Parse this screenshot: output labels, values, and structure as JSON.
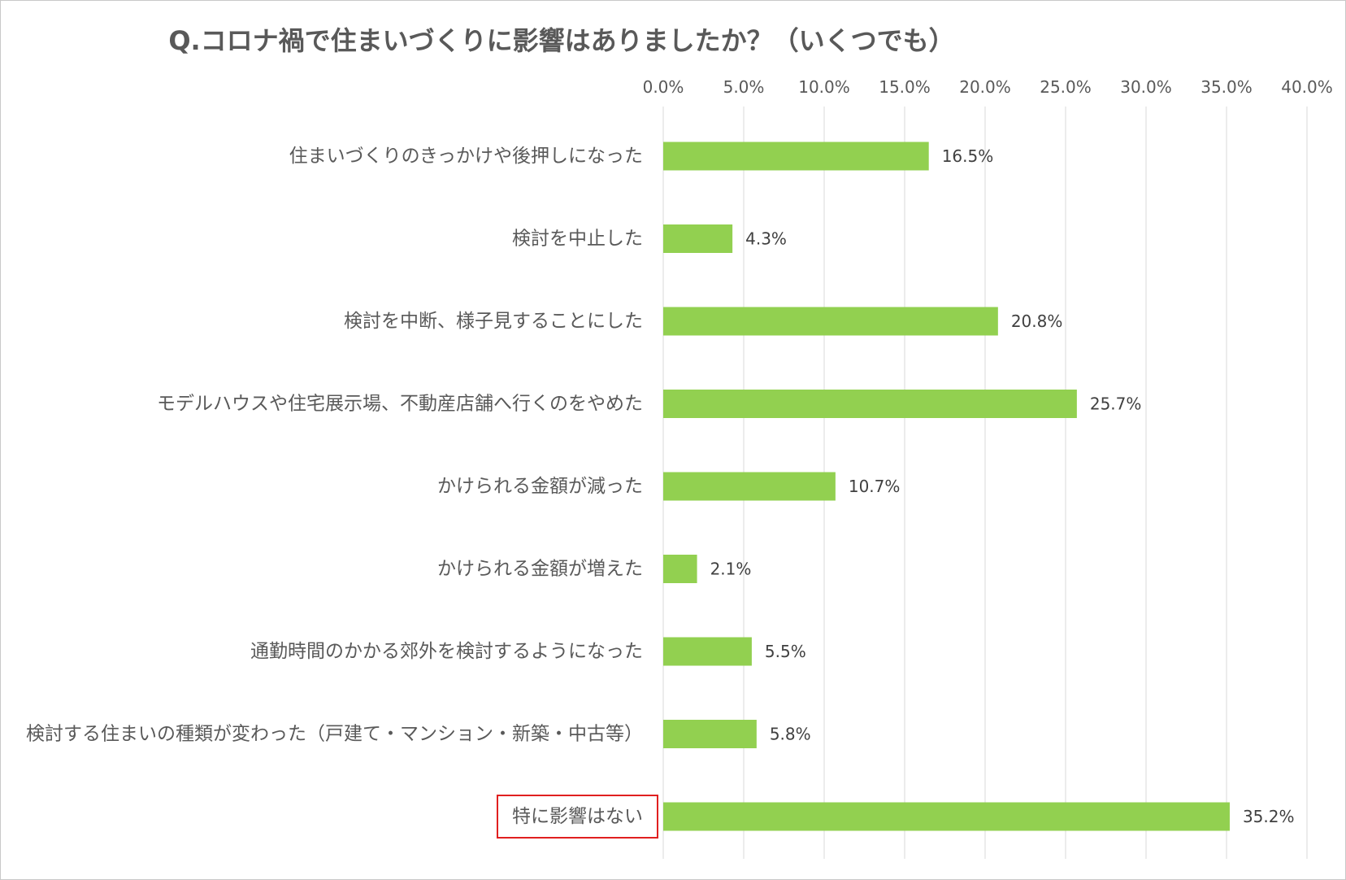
{
  "chart_data": {
    "type": "bar",
    "orientation": "horizontal",
    "title": "Q.コロナ禍で住まいづくりに影響はありましたか？（いくつでも）",
    "categories": [
      "住まいづくりのきっかけや後押しになった",
      "検討を中止した",
      "検討を中断、様子見することにした",
      "モデルハウスや住宅展示場、不動産店舗へ行くのをやめた",
      "かけられる金額が減った",
      "かけられる金額が増えた",
      "通勤時間のかかる郊外を検討するようになった",
      "検討する住まいの種類が変わった（戸建て・マンション・新築・中古等）",
      "特に影響はない"
    ],
    "values": [
      16.5,
      4.3,
      20.8,
      25.7,
      10.7,
      2.1,
      5.5,
      5.8,
      35.2
    ],
    "value_labels": [
      "16.5%",
      "4.3%",
      "20.8%",
      "25.7%",
      "10.7%",
      "2.1%",
      "5.5%",
      "5.8%",
      "35.2%"
    ],
    "xlim": [
      0,
      40
    ],
    "x_ticks": [
      "0.0%",
      "5.0%",
      "10.0%",
      "15.0%",
      "20.0%",
      "25.0%",
      "30.0%",
      "35.0%",
      "40.0%"
    ],
    "axis_position": "top",
    "grid": true,
    "highlighted_category_index": 8,
    "colors": {
      "bar": "#92d050",
      "grid": "#d9d9d9",
      "highlight_box": "#e02020",
      "text": "#595959"
    }
  }
}
